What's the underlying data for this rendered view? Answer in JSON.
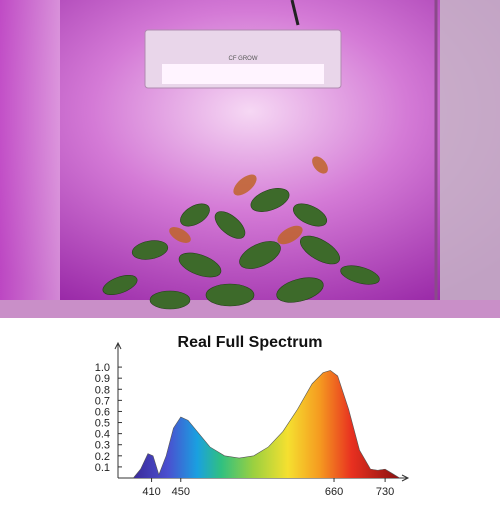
{
  "photo": {
    "brand": "CF GROW"
  },
  "chart_data": {
    "type": "area",
    "title": "Real Full Spectrum",
    "x": [
      385,
      395,
      405,
      412,
      420,
      430,
      440,
      450,
      460,
      475,
      490,
      510,
      530,
      550,
      570,
      590,
      610,
      630,
      645,
      655,
      665,
      680,
      695,
      710,
      720,
      730,
      740,
      750
    ],
    "y": [
      0,
      0.08,
      0.22,
      0.2,
      0.03,
      0.2,
      0.45,
      0.55,
      0.52,
      0.4,
      0.28,
      0.2,
      0.18,
      0.2,
      0.28,
      0.42,
      0.62,
      0.85,
      0.95,
      0.97,
      0.92,
      0.62,
      0.25,
      0.08,
      0.07,
      0.08,
      0.04,
      0
    ],
    "xlim": [
      364,
      760
    ],
    "xticks": [
      410,
      450,
      660,
      730
    ],
    "ylim": [
      0,
      1.1
    ],
    "yticks": [
      0.1,
      0.2,
      0.3,
      0.4,
      0.5,
      0.6,
      0.7,
      0.8,
      0.9,
      {
        "value": 1,
        "label": "1.0"
      }
    ]
  }
}
